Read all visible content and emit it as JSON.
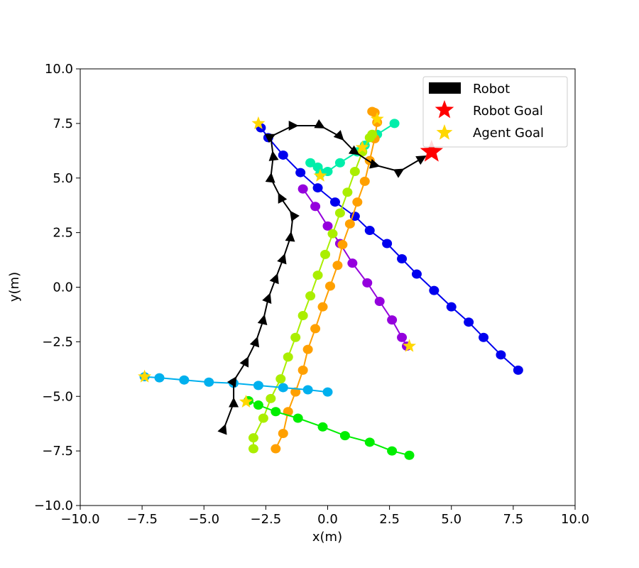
{
  "chart_data": {
    "type": "scatter",
    "xlabel": "x(m)",
    "ylabel": "y(m)",
    "xlim": [
      -10,
      10
    ],
    "ylim": [
      -10,
      10
    ],
    "x_ticks": [
      -10,
      -7.5,
      -5,
      -2.5,
      0,
      2.5,
      5,
      7.5,
      10
    ],
    "y_ticks": [
      -10,
      -7.5,
      -5,
      -2.5,
      0,
      2.5,
      5,
      7.5,
      10
    ],
    "x_tick_labels": [
      "−10.0",
      "−7.5",
      "−5.0",
      "−2.5",
      "0.0",
      "2.5",
      "5.0",
      "7.5",
      "10.0"
    ],
    "y_tick_labels": [
      "−10.0",
      "−7.5",
      "−5.0",
      "−2.5",
      "0.0",
      "2.5",
      "5.0",
      "7.5",
      "10.0"
    ],
    "grid": false,
    "legend_position": "top-right",
    "legend": [
      {
        "label": "Robot",
        "marker": "rectangle",
        "color": "#000000"
      },
      {
        "label": "Robot Goal",
        "marker": "star",
        "color": "#ff0000"
      },
      {
        "label": "Agent Goal",
        "marker": "star",
        "color": "#ffd700"
      }
    ],
    "robot_goal": {
      "x": 4.2,
      "y": 6.2,
      "color": "#ff0000"
    },
    "robot": {
      "color": "#000000",
      "points": [
        [
          -4.2,
          -6.5
        ],
        [
          -3.8,
          -5.3
        ],
        [
          -3.8,
          -4.3
        ],
        [
          -3.3,
          -3.4
        ],
        [
          -2.9,
          -2.5
        ],
        [
          -2.6,
          -1.5
        ],
        [
          -2.4,
          -0.5
        ],
        [
          -2.1,
          0.4
        ],
        [
          -1.8,
          1.3
        ],
        [
          -1.5,
          2.3
        ],
        [
          -1.4,
          3.3
        ],
        [
          -1.9,
          4.1
        ],
        [
          -2.3,
          5.0
        ],
        [
          -2.2,
          6.0
        ],
        [
          -2.3,
          6.9
        ],
        [
          -1.4,
          7.4
        ],
        [
          -0.3,
          7.4
        ],
        [
          0.5,
          6.9
        ],
        [
          1.1,
          6.2
        ],
        [
          1.9,
          5.6
        ],
        [
          2.9,
          5.3
        ],
        [
          3.8,
          5.9
        ]
      ]
    },
    "agents": [
      {
        "color": "#0000ee",
        "points": [
          [
            7.7,
            -3.8
          ],
          [
            7.0,
            -3.1
          ],
          [
            6.3,
            -2.3
          ],
          [
            5.7,
            -1.6
          ],
          [
            5.0,
            -0.9
          ],
          [
            4.3,
            -0.15
          ],
          [
            3.6,
            0.6
          ],
          [
            3.0,
            1.3
          ],
          [
            2.4,
            2.0
          ],
          [
            1.7,
            2.6
          ],
          [
            1.1,
            3.25
          ],
          [
            0.3,
            3.9
          ],
          [
            -0.4,
            4.55
          ],
          [
            -1.1,
            5.25
          ],
          [
            -1.8,
            6.05
          ],
          [
            -2.4,
            6.85
          ],
          [
            -2.7,
            7.3
          ]
        ],
        "goal": [
          -2.8,
          7.5
        ]
      },
      {
        "color": "#00eeaa",
        "points": [
          [
            2.7,
            7.5
          ],
          [
            2.0,
            7.0
          ],
          [
            1.5,
            6.5
          ],
          [
            1.2,
            6.2
          ],
          [
            0.5,
            5.7
          ],
          [
            0.0,
            5.3
          ],
          [
            -0.4,
            5.5
          ],
          [
            -0.7,
            5.7
          ],
          [
            -0.3,
            5.2
          ]
        ],
        "goal": [
          -0.3,
          5.1
        ]
      },
      {
        "color": "#9400dd",
        "points": [
          [
            3.2,
            -2.7
          ],
          [
            3.0,
            -2.3
          ],
          [
            2.6,
            -1.5
          ],
          [
            2.1,
            -0.65
          ],
          [
            1.6,
            0.2
          ],
          [
            1.0,
            1.1
          ],
          [
            0.5,
            2.0
          ],
          [
            0.0,
            2.8
          ],
          [
            -0.5,
            3.7
          ],
          [
            -1.0,
            4.5
          ]
        ],
        "goal": [
          3.3,
          -2.7
        ]
      },
      {
        "color": "#ffa000",
        "points": [
          [
            -2.1,
            -7.4
          ],
          [
            -1.8,
            -6.7
          ],
          [
            -1.6,
            -5.7
          ],
          [
            -1.3,
            -4.8
          ],
          [
            -1.0,
            -3.8
          ],
          [
            -0.8,
            -2.85
          ],
          [
            -0.5,
            -1.9
          ],
          [
            -0.2,
            -0.9
          ],
          [
            0.1,
            0.05
          ],
          [
            0.4,
            1.0
          ],
          [
            0.6,
            1.95
          ],
          [
            0.9,
            2.9
          ],
          [
            1.2,
            3.9
          ],
          [
            1.5,
            4.85
          ],
          [
            1.7,
            5.8
          ],
          [
            1.9,
            6.8
          ],
          [
            2.0,
            7.55
          ],
          [
            1.9,
            8.0
          ],
          [
            1.8,
            8.05
          ]
        ],
        "goal": [
          2.0,
          7.7
        ]
      },
      {
        "color": "#aaee00",
        "points": [
          [
            -3.0,
            -7.4
          ],
          [
            -3.0,
            -6.9
          ],
          [
            -2.6,
            -6.0
          ],
          [
            -2.3,
            -5.1
          ],
          [
            -1.9,
            -4.2
          ],
          [
            -1.6,
            -3.2
          ],
          [
            -1.3,
            -2.3
          ],
          [
            -1.0,
            -1.3
          ],
          [
            -0.7,
            -0.4
          ],
          [
            -0.4,
            0.55
          ],
          [
            -0.1,
            1.5
          ],
          [
            0.2,
            2.45
          ],
          [
            0.5,
            3.4
          ],
          [
            0.8,
            4.35
          ],
          [
            1.1,
            5.3
          ],
          [
            1.4,
            6.2
          ],
          [
            1.7,
            6.85
          ],
          [
            1.8,
            7.0
          ]
        ],
        "goal": [
          1.4,
          6.4
        ]
      },
      {
        "color": "#00b0ee",
        "points": [
          [
            0.0,
            -4.8
          ],
          [
            -0.8,
            -4.7
          ],
          [
            -1.8,
            -4.6
          ],
          [
            -2.8,
            -4.5
          ],
          [
            -3.8,
            -4.4
          ],
          [
            -4.8,
            -4.35
          ],
          [
            -5.8,
            -4.25
          ],
          [
            -6.8,
            -4.15
          ],
          [
            -7.4,
            -4.1
          ]
        ],
        "goal": [
          -7.4,
          -4.1
        ]
      },
      {
        "color": "#00ee00",
        "points": [
          [
            3.3,
            -7.7
          ],
          [
            2.6,
            -7.5
          ],
          [
            1.7,
            -7.1
          ],
          [
            0.7,
            -6.8
          ],
          [
            -0.2,
            -6.4
          ],
          [
            -1.2,
            -6.0
          ],
          [
            -2.1,
            -5.7
          ],
          [
            -2.8,
            -5.4
          ],
          [
            -3.2,
            -5.2
          ]
        ],
        "goal": [
          -3.3,
          -5.25
        ]
      }
    ]
  }
}
